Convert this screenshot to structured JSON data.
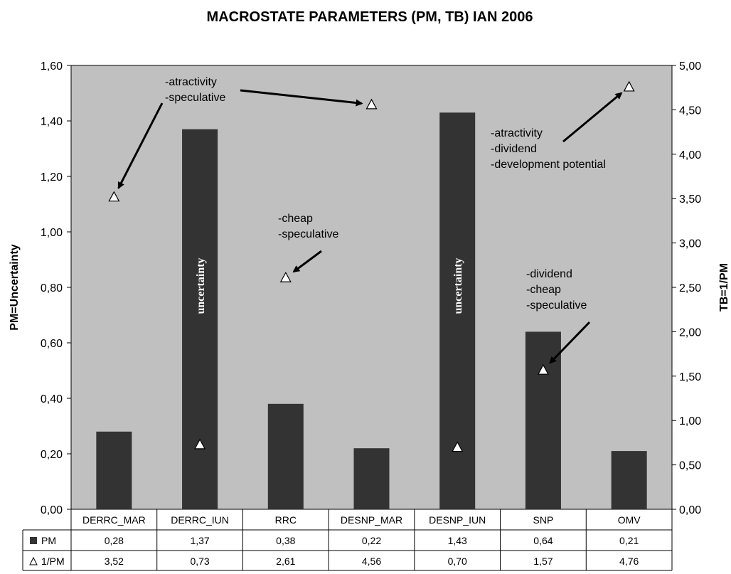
{
  "chart_data": {
    "type": "bar",
    "title": "MACROSTATE PARAMETERS (PM, TB) IAN 2006",
    "categories": [
      "DERRC_MAR",
      "DERRC_IUN",
      "RRC",
      "DESNP_MAR",
      "DESNP_IUN",
      "SNP",
      "OMV"
    ],
    "series": [
      {
        "name": "PM",
        "axis": "left",
        "type": "bar",
        "color": "#333333",
        "values": [
          0.28,
          1.37,
          0.38,
          0.22,
          1.43,
          0.64,
          0.21
        ],
        "display": [
          "0,28",
          "1,37",
          "0,38",
          "0,22",
          "1,43",
          "0,64",
          "0,21"
        ]
      },
      {
        "name": "1/PM",
        "axis": "right",
        "type": "marker",
        "marker": "triangle",
        "color": "#ffffff",
        "values": [
          3.52,
          0.73,
          2.61,
          4.56,
          0.7,
          1.57,
          4.76
        ],
        "display": [
          "3,52",
          "0,73",
          "2,61",
          "4,56",
          "0,70",
          "1,57",
          "4,76"
        ]
      }
    ],
    "ylabel": "PM=Uncertainty",
    "ylabel_right": "TB=1/PM",
    "ylim": [
      0,
      1.6
    ],
    "ylim_right": [
      0,
      5
    ],
    "yticks": [
      "0,00",
      "0,20",
      "0,40",
      "0,60",
      "0,80",
      "1,00",
      "1,20",
      "1,40",
      "1,60"
    ],
    "yticks_right": [
      "0,00",
      "0,50",
      "1,00",
      "1,50",
      "2,00",
      "2,50",
      "3,00",
      "3,50",
      "4,00",
      "4,50",
      "5,00"
    ],
    "plot_background": "#c0c0c0",
    "grid": false,
    "data_table": true,
    "bar_annotations": [
      {
        "category": "DERRC_IUN",
        "text": "uncertainty"
      },
      {
        "category": "DESNP_IUN",
        "text": "uncertainty"
      }
    ],
    "annotations": [
      {
        "lines": [
          "-atractivity",
          "-speculative"
        ],
        "targets": [
          "DERRC_MAR",
          "DESNP_MAR"
        ]
      },
      {
        "lines": [
          "-cheap",
          "-speculative"
        ],
        "targets": [
          "RRC"
        ]
      },
      {
        "lines": [
          "-atractivity",
          "-dividend",
          "-development potential"
        ],
        "targets": [
          "OMV"
        ]
      },
      {
        "lines": [
          "-dividend",
          "-cheap",
          "-speculative"
        ],
        "targets": [
          "SNP"
        ]
      }
    ]
  }
}
